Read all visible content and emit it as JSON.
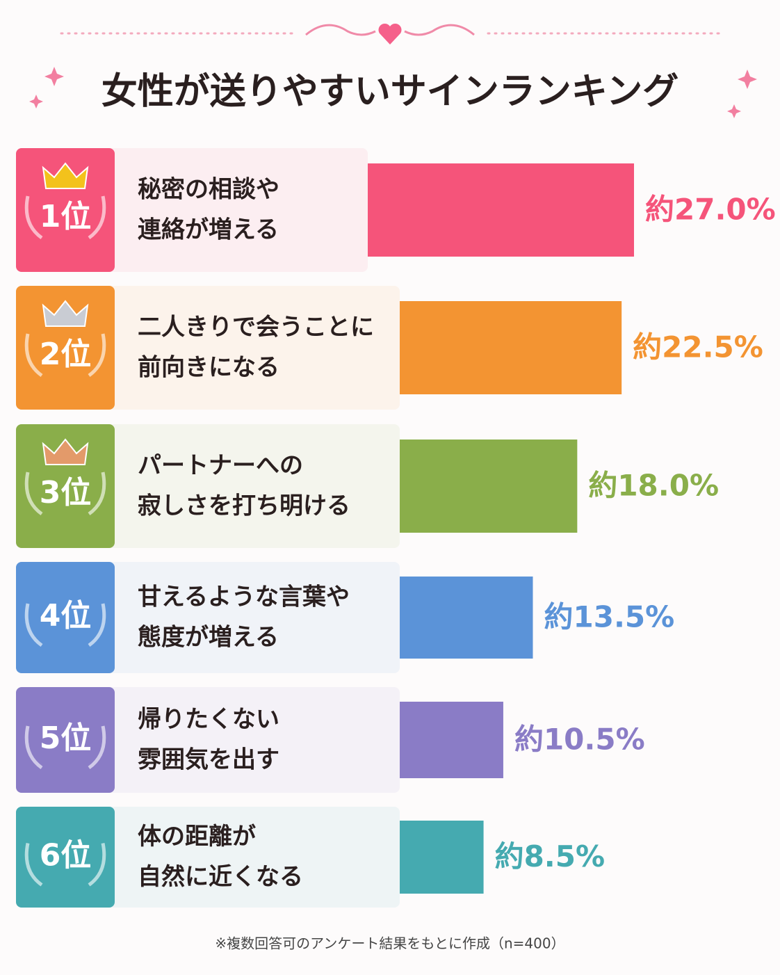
{
  "chart_data": {
    "type": "bar",
    "orientation": "horizontal",
    "title": "女性が送りやすいサインランキング",
    "ranks": [
      "1位",
      "2位",
      "3位",
      "4位",
      "5位",
      "6位"
    ],
    "categories": [
      [
        "秘密の相談や",
        "連絡が増える"
      ],
      [
        "二人きりで会うことに",
        "前向きになる"
      ],
      [
        "パートナーへの",
        "寂しさを打ち明ける"
      ],
      [
        "甘えるような言葉や",
        "態度が増える"
      ],
      [
        "帰りたくない",
        "雰囲気を出す"
      ],
      [
        "体の距離が",
        "自然に近くなる"
      ]
    ],
    "values": [
      27.0,
      22.5,
      18.0,
      13.5,
      10.5,
      8.5
    ],
    "value_labels": [
      "約27.0%",
      "約22.5%",
      "約18.0%",
      "約13.5%",
      "約10.5%",
      "約8.5%"
    ],
    "colors": [
      "#f5547a",
      "#f39432",
      "#8aae4a",
      "#5b93d8",
      "#8a7cc6",
      "#45aab0"
    ],
    "note": "※複数回答可のアンケート結果をもとに作成（n=400）"
  }
}
